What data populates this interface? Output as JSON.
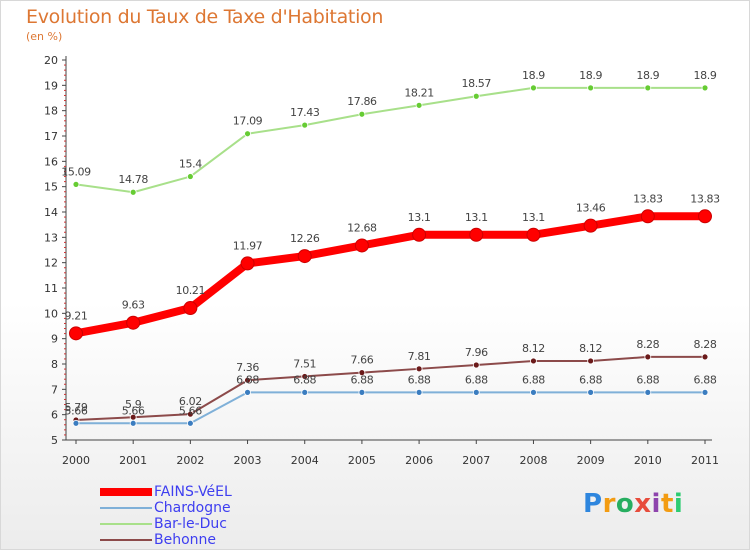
{
  "chart_data": {
    "type": "line",
    "title": "Evolution du Taux de Taxe d'Habitation",
    "subtitle": "(en %)",
    "x": [
      "2000",
      "2001",
      "2002",
      "2003",
      "2004",
      "2005",
      "2006",
      "2007",
      "2008",
      "2009",
      "2010",
      "2011"
    ],
    "ylim": [
      5,
      20
    ],
    "yticks": [
      5,
      6,
      7,
      8,
      9,
      10,
      11,
      12,
      13,
      14,
      15,
      16,
      17,
      18,
      19,
      20
    ],
    "grid": false,
    "legend_position": "bottom-left",
    "series": [
      {
        "name": "FAINS-VéEL",
        "color": "#ff0000",
        "marker_color": "#ff0000",
        "width": 8,
        "values": [
          9.21,
          9.63,
          10.21,
          11.97,
          12.26,
          12.68,
          13.1,
          13.1,
          13.1,
          13.46,
          13.83,
          13.83
        ],
        "labels": [
          "9.21",
          "9.63",
          "10.21",
          "11.97",
          "12.26",
          "12.68",
          "13.1",
          "13.1",
          "13.1",
          "13.46",
          "13.83",
          "13.83"
        ]
      },
      {
        "name": "Chardogne",
        "color": "#7fb0d8",
        "marker_color": "#3b7dc0",
        "width": 2,
        "values": [
          5.66,
          5.66,
          5.66,
          6.88,
          6.88,
          6.88,
          6.88,
          6.88,
          6.88,
          6.88,
          6.88,
          6.88
        ],
        "labels": [
          "5.66",
          "5.66",
          "5.66",
          "6.88",
          "6.88",
          "6.88",
          "6.88",
          "6.88",
          "6.88",
          "6.88",
          "6.88",
          "6.88"
        ]
      },
      {
        "name": "Bar-le-Duc",
        "color": "#a8e08a",
        "marker_color": "#66cc33",
        "width": 2,
        "values": [
          15.09,
          14.78,
          15.4,
          17.09,
          17.43,
          17.86,
          18.21,
          18.57,
          18.9,
          18.9,
          18.9,
          18.9
        ],
        "labels": [
          "15.09",
          "14.78",
          "15.4",
          "17.09",
          "17.43",
          "17.86",
          "18.21",
          "18.57",
          "18.9",
          "18.9",
          "18.9",
          "18.9"
        ]
      },
      {
        "name": "Behonne",
        "color": "#8c4a4a",
        "marker_color": "#6b1a1a",
        "width": 2,
        "values": [
          5.79,
          5.9,
          6.02,
          7.36,
          7.51,
          7.66,
          7.81,
          7.96,
          8.12,
          8.12,
          8.28,
          8.28
        ],
        "labels": [
          "5.79",
          "5.9",
          "6.02",
          "7.36",
          "7.51",
          "7.66",
          "7.81",
          "7.96",
          "8.12",
          "8.12",
          "8.28",
          "8.28"
        ]
      }
    ]
  },
  "brand": {
    "letters": [
      "P",
      "r",
      "o",
      "x",
      "i",
      "t",
      "i"
    ],
    "colors": [
      "#2e86de",
      "#f39c12",
      "#27ae60",
      "#e74c3c",
      "#8e44ad",
      "#f39c12",
      "#2ecc71"
    ]
  }
}
